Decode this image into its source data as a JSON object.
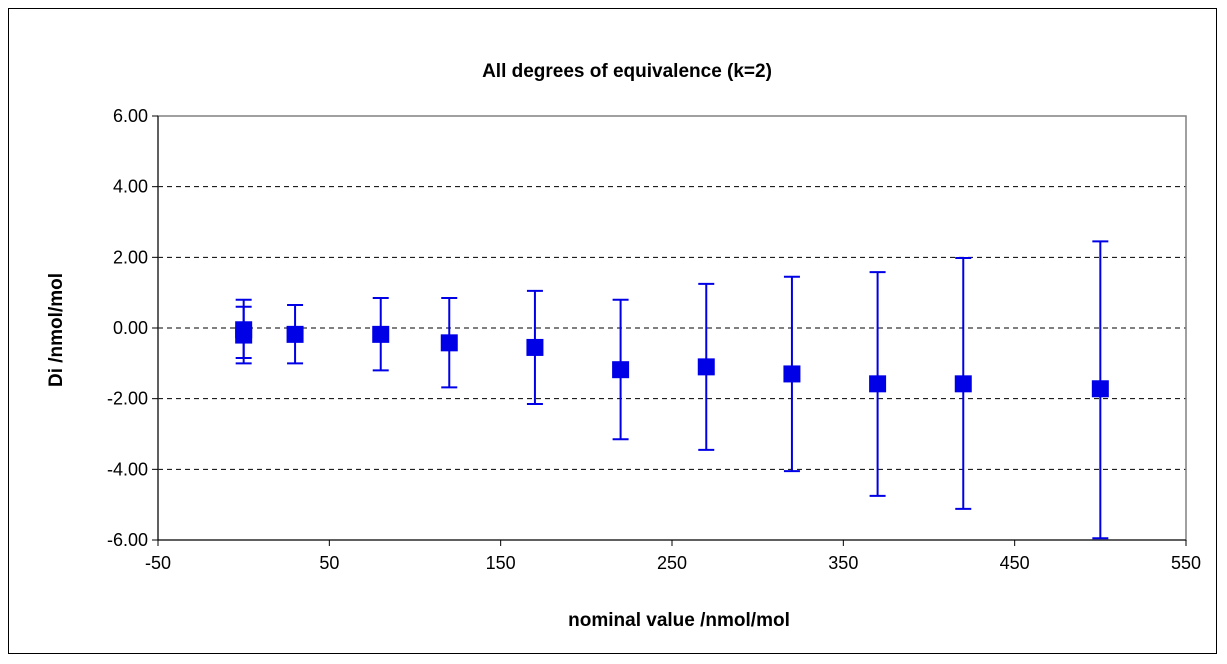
{
  "chart_data": {
    "type": "scatter",
    "title": "All degrees of equivalence (k=2)",
    "xlabel": "nominal value /nmol/mol",
    "ylabel": "Di /nmol/mol",
    "xlim": [
      -50,
      550
    ],
    "ylim": [
      -6,
      6
    ],
    "xticks": [
      "-50",
      "50",
      "150",
      "250",
      "350",
      "450",
      "550"
    ],
    "yticks": [
      "6.00",
      "4.00",
      "2.00",
      "0.00",
      "-2.00",
      "-4.00",
      "-6.00"
    ],
    "grid": "horizontal dashed",
    "legend": "none",
    "marker": "square",
    "color": "#0000e6",
    "series": [
      {
        "points": [
          {
            "x": 0,
            "y": -0.05,
            "low": -0.85,
            "high": 0.8
          },
          {
            "x": 0,
            "y": -0.2,
            "low": -1.0,
            "high": 0.6
          },
          {
            "x": 30,
            "y": -0.18,
            "low": -1.0,
            "high": 0.65
          },
          {
            "x": 80,
            "y": -0.18,
            "low": -1.2,
            "high": 0.85
          },
          {
            "x": 120,
            "y": -0.42,
            "low": -1.68,
            "high": 0.85
          },
          {
            "x": 170,
            "y": -0.55,
            "low": -2.15,
            "high": 1.05
          },
          {
            "x": 220,
            "y": -1.18,
            "low": -3.15,
            "high": 0.8
          },
          {
            "x": 270,
            "y": -1.1,
            "low": -3.45,
            "high": 1.25
          },
          {
            "x": 320,
            "y": -1.3,
            "low": -4.05,
            "high": 1.45
          },
          {
            "x": 370,
            "y": -1.58,
            "low": -4.75,
            "high": 1.58
          },
          {
            "x": 420,
            "y": -1.58,
            "low": -5.12,
            "high": 1.98
          },
          {
            "x": 500,
            "y": -1.72,
            "low": -5.95,
            "high": 2.45
          }
        ]
      }
    ]
  }
}
